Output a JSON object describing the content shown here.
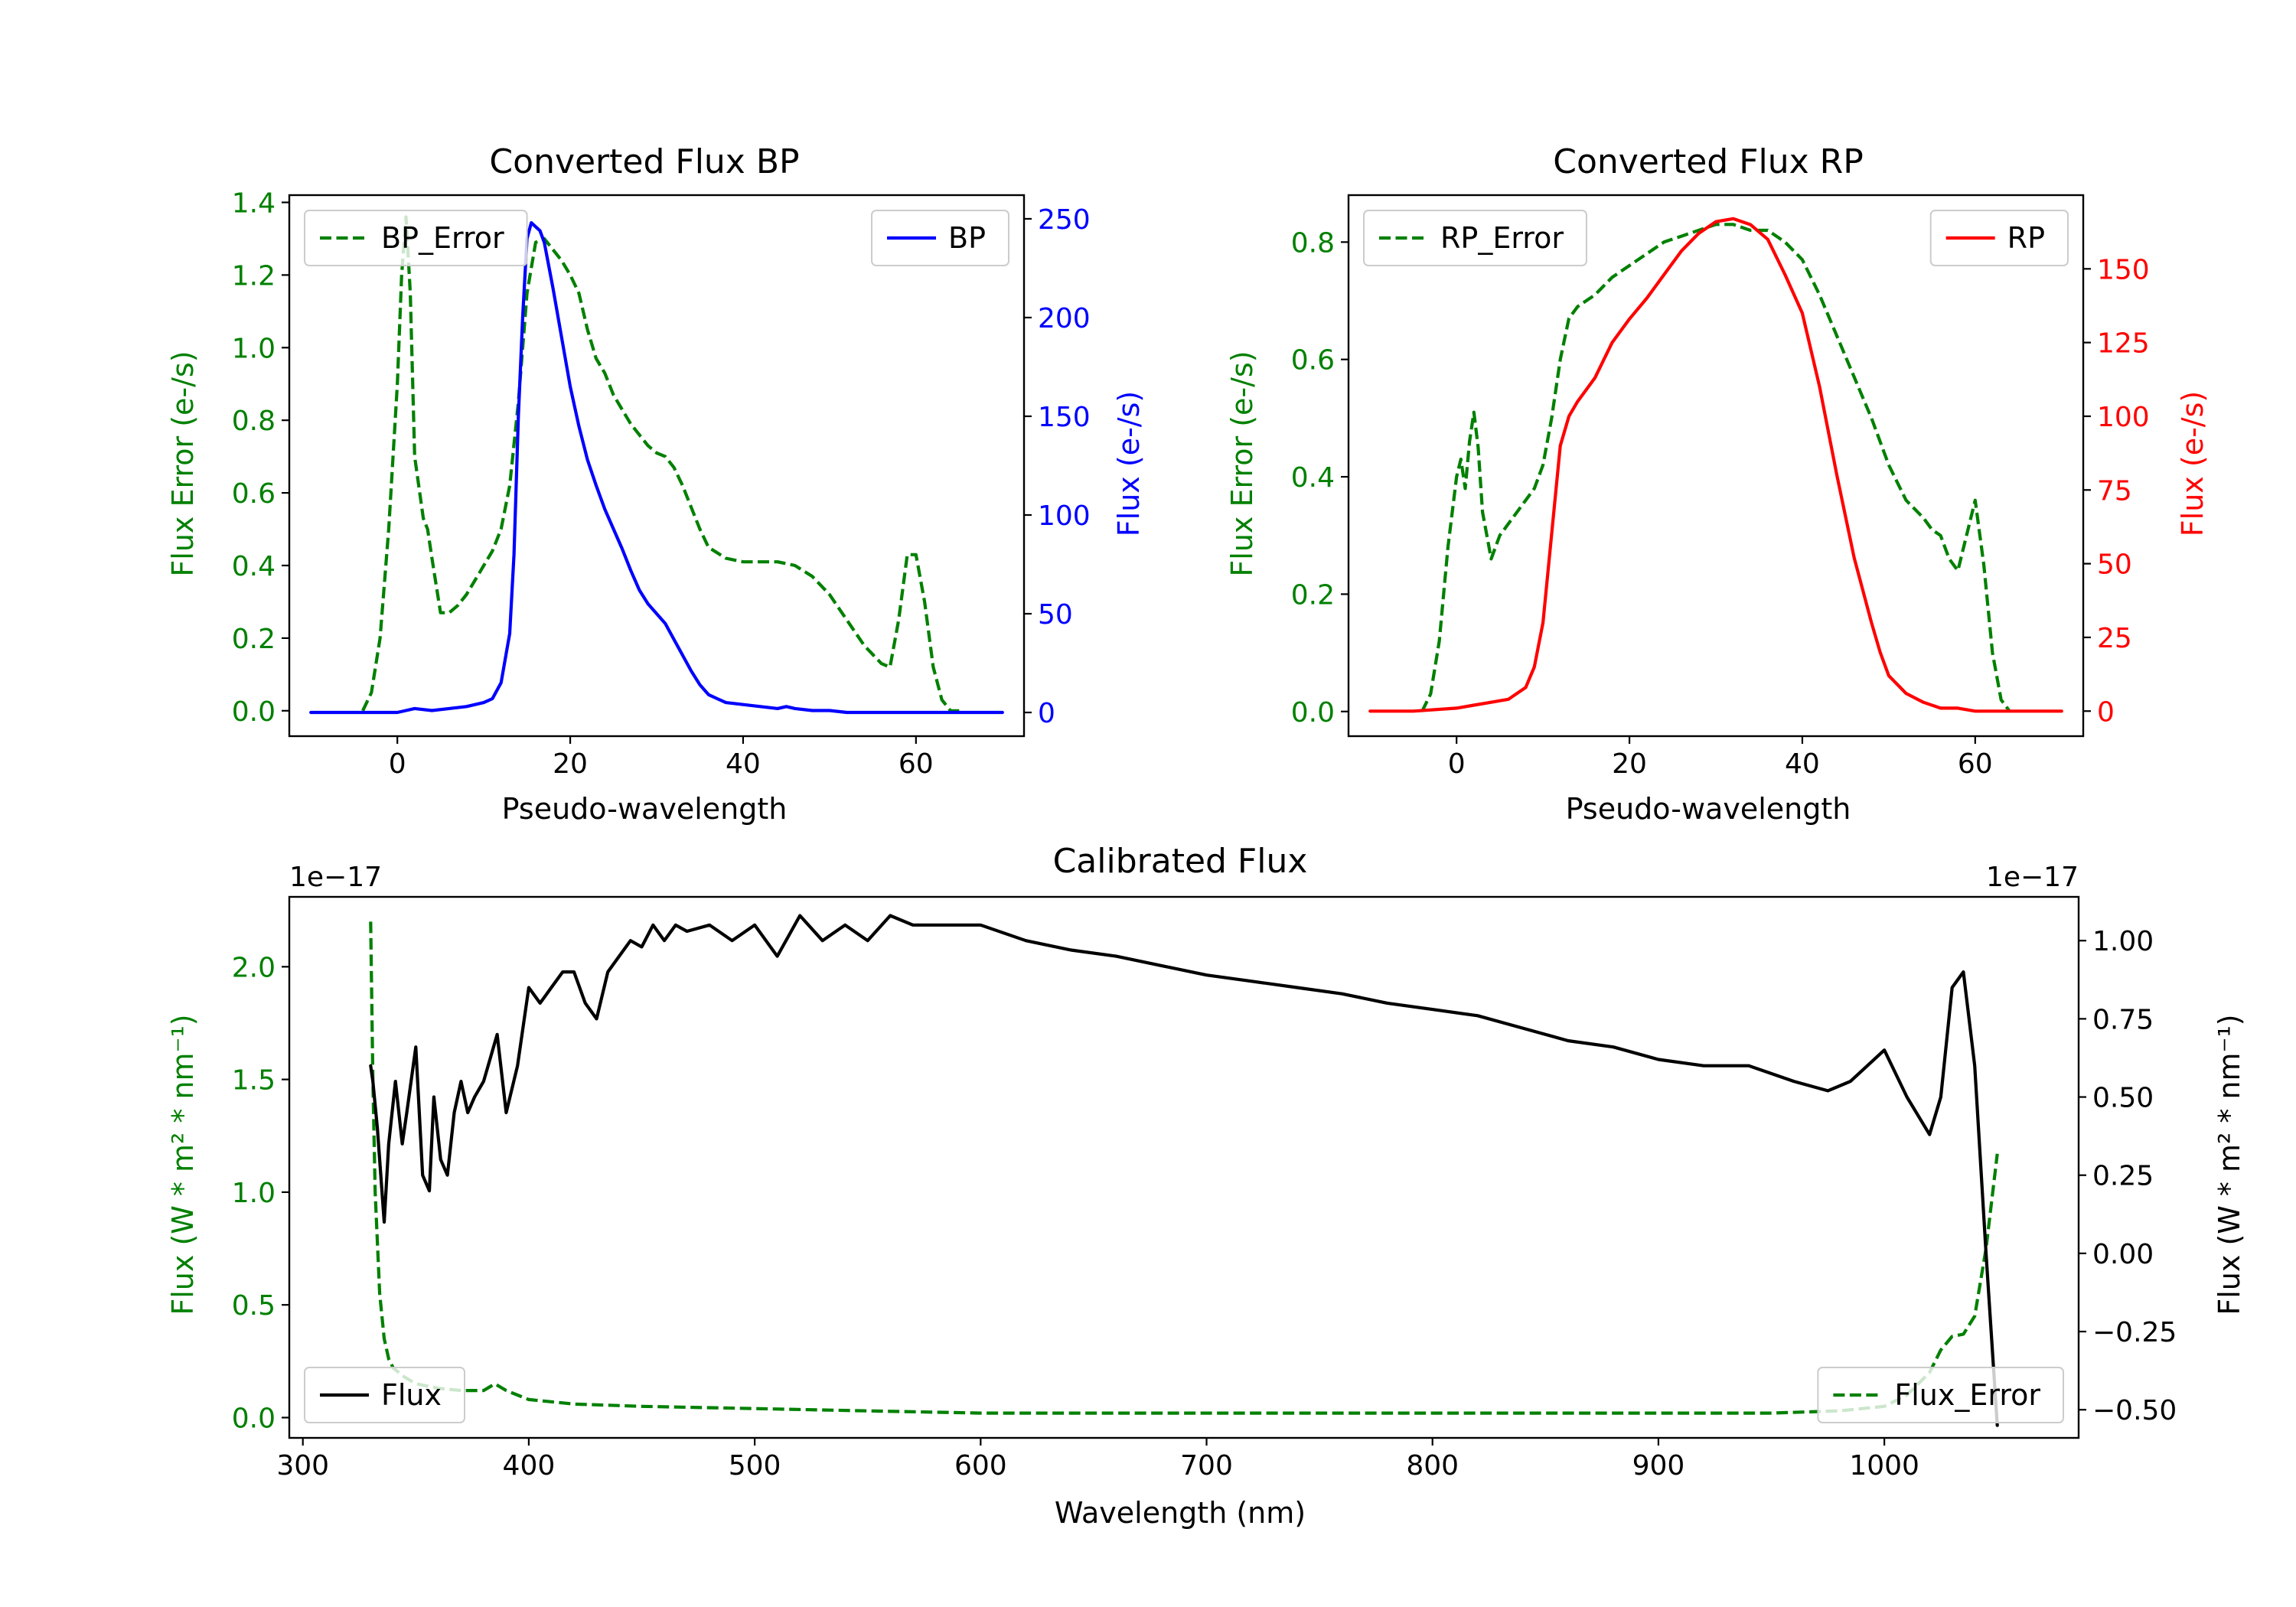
{
  "figure": {
    "background": "#ffffff"
  },
  "chart_data": [
    {
      "id": "bp",
      "type": "line",
      "title": "Converted Flux BP",
      "xlabel": "Pseudo-wavelength",
      "xlim": [
        -12.5,
        72.5
      ],
      "xticks": [
        0,
        20,
        40,
        60
      ],
      "ylabel_left": "Flux Error (e-/s)",
      "ylim_left": [
        -0.07,
        1.42
      ],
      "yticks_left": [
        0.0,
        0.2,
        0.4,
        0.6,
        0.8,
        1.0,
        1.2,
        1.4
      ],
      "ylabel_right": "Flux (e-/s)",
      "ylim_right": [
        -12,
        262
      ],
      "yticks_right": [
        0,
        50,
        100,
        150,
        200,
        250
      ],
      "left_color": "#008000",
      "right_color": "#0000ff",
      "series": [
        {
          "name": "BP_Error",
          "axis": "left",
          "color": "#008000",
          "style": "dashed",
          "x": [
            -4,
            -3,
            -2,
            -1,
            0,
            0.5,
            1,
            1.5,
            2,
            3,
            3.5,
            4,
            5,
            6,
            7,
            8,
            9,
            10,
            11,
            12,
            13,
            14,
            15,
            16,
            17,
            18,
            19,
            20,
            21,
            22,
            23,
            24,
            25,
            26,
            27,
            28,
            29,
            30,
            31,
            32,
            33,
            34,
            35,
            36,
            38,
            40,
            42,
            44,
            46,
            48,
            50,
            52,
            54,
            56,
            57,
            58,
            59,
            60,
            61,
            62,
            63,
            64,
            65
          ],
          "y": [
            0.0,
            0.05,
            0.2,
            0.5,
            0.9,
            1.2,
            1.36,
            1.15,
            0.7,
            0.53,
            0.5,
            0.42,
            0.27,
            0.27,
            0.29,
            0.32,
            0.36,
            0.4,
            0.44,
            0.5,
            0.62,
            0.85,
            1.15,
            1.29,
            1.3,
            1.27,
            1.24,
            1.2,
            1.15,
            1.05,
            0.97,
            0.93,
            0.87,
            0.83,
            0.79,
            0.76,
            0.73,
            0.71,
            0.7,
            0.67,
            0.62,
            0.56,
            0.5,
            0.45,
            0.42,
            0.41,
            0.41,
            0.41,
            0.4,
            0.37,
            0.32,
            0.25,
            0.18,
            0.13,
            0.12,
            0.25,
            0.43,
            0.43,
            0.3,
            0.12,
            0.03,
            0.0,
            0.0
          ]
        },
        {
          "name": "BP",
          "axis": "right",
          "color": "#0000ff",
          "style": "solid",
          "x": [
            -10,
            -5,
            -2,
            0,
            1,
            2,
            4,
            6,
            8,
            10,
            11,
            12,
            13,
            13.5,
            14,
            14.5,
            15,
            15.5,
            16,
            16.5,
            17,
            18,
            19,
            20,
            21,
            22,
            23,
            24,
            25,
            26,
            27,
            28,
            29,
            30,
            31,
            32,
            33,
            34,
            35,
            36,
            37,
            38,
            40,
            42,
            44,
            45,
            46,
            48,
            50,
            52,
            54,
            56,
            58,
            60,
            62,
            65,
            70
          ],
          "y": [
            0,
            0,
            0,
            0,
            1,
            2,
            1,
            2,
            3,
            5,
            7,
            15,
            40,
            80,
            150,
            200,
            240,
            248,
            246,
            244,
            238,
            215,
            190,
            165,
            145,
            128,
            115,
            103,
            93,
            83,
            72,
            62,
            55,
            50,
            45,
            37,
            29,
            21,
            14,
            9,
            7,
            5,
            4,
            3,
            2,
            3,
            2,
            1,
            1,
            0,
            0,
            0,
            0,
            0,
            0,
            0,
            0
          ]
        }
      ],
      "legends": [
        {
          "label": "BP_Error",
          "position": "upper left"
        },
        {
          "label": "BP",
          "position": "upper right"
        }
      ]
    },
    {
      "id": "rp",
      "type": "line",
      "title": "Converted Flux RP",
      "xlabel": "Pseudo-wavelength",
      "xlim": [
        -12.5,
        72.5
      ],
      "xticks": [
        0,
        20,
        40,
        60
      ],
      "ylabel_left": "Flux Error (e-/s)",
      "ylim_left": [
        -0.042,
        0.88
      ],
      "yticks_left": [
        0.0,
        0.2,
        0.4,
        0.6,
        0.8
      ],
      "ylabel_right": "Flux (e-/s)",
      "ylim_right": [
        -8.5,
        175
      ],
      "yticks_right": [
        0,
        25,
        50,
        75,
        100,
        125,
        150
      ],
      "left_color": "#008000",
      "right_color": "#ff0000",
      "series": [
        {
          "name": "RP_Error",
          "axis": "left",
          "color": "#008000",
          "style": "dashed",
          "x": [
            -4,
            -3,
            -2,
            -1,
            0,
            0.5,
            1,
            1.5,
            2,
            2.5,
            3,
            4,
            5,
            6,
            7,
            8,
            9,
            10,
            11,
            12,
            13,
            14,
            16,
            18,
            20,
            22,
            24,
            26,
            28,
            30,
            32,
            34,
            36,
            38,
            40,
            42,
            44,
            46,
            48,
            50,
            52,
            54,
            55,
            56,
            57,
            58,
            59,
            60,
            61,
            62,
            63,
            64
          ],
          "y": [
            0.0,
            0.03,
            0.12,
            0.28,
            0.4,
            0.43,
            0.38,
            0.46,
            0.51,
            0.45,
            0.34,
            0.26,
            0.3,
            0.32,
            0.34,
            0.36,
            0.38,
            0.42,
            0.5,
            0.6,
            0.67,
            0.69,
            0.71,
            0.74,
            0.76,
            0.78,
            0.8,
            0.81,
            0.82,
            0.83,
            0.83,
            0.82,
            0.82,
            0.8,
            0.77,
            0.71,
            0.64,
            0.57,
            0.5,
            0.42,
            0.36,
            0.33,
            0.31,
            0.3,
            0.26,
            0.24,
            0.3,
            0.36,
            0.25,
            0.1,
            0.02,
            0.0
          ]
        },
        {
          "name": "RP",
          "axis": "right",
          "color": "#ff0000",
          "style": "solid",
          "x": [
            -10,
            -5,
            0,
            2,
            4,
            6,
            8,
            9,
            10,
            11,
            12,
            13,
            14,
            16,
            18,
            20,
            22,
            24,
            26,
            28,
            30,
            32,
            34,
            36,
            38,
            40,
            42,
            44,
            46,
            48,
            49,
            50,
            52,
            54,
            56,
            58,
            60,
            62,
            65,
            70
          ],
          "y": [
            0,
            0,
            1,
            2,
            3,
            4,
            8,
            15,
            30,
            60,
            90,
            100,
            105,
            113,
            125,
            133,
            140,
            148,
            156,
            162,
            166,
            167,
            165,
            160,
            148,
            135,
            110,
            80,
            52,
            30,
            20,
            12,
            6,
            3,
            1,
            1,
            0,
            0,
            0,
            0
          ]
        }
      ],
      "legends": [
        {
          "label": "RP_Error",
          "position": "upper left"
        },
        {
          "label": "RP",
          "position": "upper right"
        }
      ]
    },
    {
      "id": "calibrated",
      "type": "line",
      "title": "Calibrated Flux",
      "xlabel": "Wavelength (nm)",
      "xlim": [
        294,
        1086
      ],
      "xticks": [
        300,
        400,
        500,
        600,
        700,
        800,
        900,
        1000
      ],
      "ylabel_left": "Flux (W * m² * nm⁻¹)",
      "ylim_left": [
        -0.09,
        2.31
      ],
      "yticks_left": [
        0.0,
        0.5,
        1.0,
        1.5,
        2.0
      ],
      "ytick_labels_left": [
        "0.0",
        "0.5",
        "1.0",
        "1.5",
        "2.0"
      ],
      "offset_left": "1e−17",
      "ylabel_right": "Flux (W * m² * nm⁻¹)",
      "ylim_right": [
        -0.59,
        1.14
      ],
      "yticks_right": [
        -0.5,
        -0.25,
        0.0,
        0.25,
        0.5,
        0.75,
        1.0
      ],
      "ytick_labels_right": [
        "−0.50",
        "−0.25",
        "0.00",
        "0.25",
        "0.50",
        "0.75",
        "1.00"
      ],
      "offset_right": "1e−17",
      "left_color": "#008000",
      "right_color": "#000000",
      "series": [
        {
          "name": "Flux_Error",
          "axis": "left",
          "color": "#008000",
          "style": "dashed",
          "x": [
            330,
            331,
            332,
            334,
            336,
            338,
            340,
            345,
            350,
            360,
            370,
            380,
            385,
            390,
            400,
            420,
            450,
            500,
            550,
            600,
            650,
            700,
            750,
            800,
            850,
            900,
            950,
            980,
            1000,
            1010,
            1020,
            1025,
            1030,
            1035,
            1040,
            1045,
            1050
          ],
          "y": [
            2.2,
            1.5,
            1.0,
            0.55,
            0.35,
            0.26,
            0.22,
            0.18,
            0.15,
            0.13,
            0.12,
            0.12,
            0.15,
            0.12,
            0.08,
            0.06,
            0.05,
            0.04,
            0.03,
            0.02,
            0.02,
            0.02,
            0.02,
            0.02,
            0.02,
            0.02,
            0.02,
            0.03,
            0.05,
            0.1,
            0.2,
            0.3,
            0.36,
            0.37,
            0.45,
            0.75,
            1.17
          ]
        },
        {
          "name": "Flux",
          "axis": "right",
          "color": "#000000",
          "style": "solid",
          "x": [
            330,
            331,
            333,
            336,
            338,
            341,
            344,
            346,
            350,
            353,
            356,
            358,
            361,
            364,
            367,
            370,
            373,
            376,
            380,
            386,
            390,
            395,
            400,
            405,
            410,
            415,
            420,
            425,
            430,
            435,
            440,
            445,
            450,
            455,
            460,
            465,
            470,
            480,
            490,
            500,
            510,
            520,
            530,
            540,
            550,
            560,
            570,
            580,
            600,
            620,
            640,
            660,
            680,
            700,
            720,
            740,
            760,
            780,
            800,
            820,
            840,
            860,
            880,
            900,
            920,
            940,
            960,
            975,
            985,
            1000,
            1010,
            1020,
            1025,
            1030,
            1035,
            1040,
            1045,
            1050
          ],
          "y": [
            0.6,
            0.55,
            0.4,
            0.1,
            0.35,
            0.55,
            0.35,
            0.45,
            0.66,
            0.25,
            0.2,
            0.5,
            0.3,
            0.25,
            0.45,
            0.55,
            0.45,
            0.5,
            0.55,
            0.7,
            0.45,
            0.6,
            0.85,
            0.8,
            0.85,
            0.9,
            0.9,
            0.8,
            0.75,
            0.9,
            0.95,
            1.0,
            0.98,
            1.05,
            1.0,
            1.05,
            1.03,
            1.05,
            1.0,
            1.05,
            0.95,
            1.08,
            1.0,
            1.05,
            1.0,
            1.08,
            1.05,
            1.05,
            1.05,
            1.0,
            0.97,
            0.95,
            0.92,
            0.89,
            0.87,
            0.85,
            0.83,
            0.8,
            0.78,
            0.76,
            0.72,
            0.68,
            0.66,
            0.62,
            0.6,
            0.6,
            0.55,
            0.52,
            0.55,
            0.65,
            0.5,
            0.38,
            0.5,
            0.85,
            0.9,
            0.6,
            0.0,
            -0.55
          ]
        }
      ],
      "legends": [
        {
          "label": "Flux",
          "position": "lower left"
        },
        {
          "label": "Flux_Error",
          "position": "lower right"
        }
      ]
    }
  ]
}
